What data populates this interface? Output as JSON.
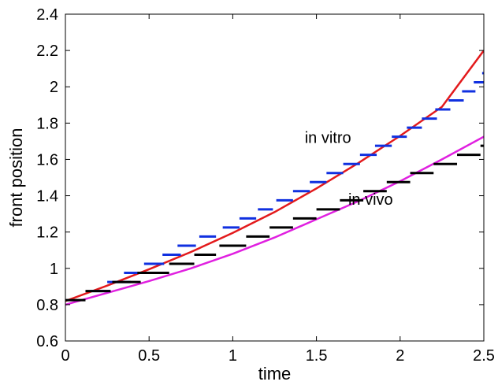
{
  "chart_data": {
    "type": "line",
    "title": "",
    "xlabel": "time",
    "ylabel": "front position",
    "xlim": [
      0,
      2.5
    ],
    "ylim": [
      0.6,
      2.4
    ],
    "xticks": [
      0,
      0.5,
      1,
      1.5,
      2,
      2.5
    ],
    "xtick_labels": [
      "0",
      "0.5",
      "1",
      "1.5",
      "2",
      "2.5"
    ],
    "yticks": [
      0.6,
      0.8,
      1,
      1.2,
      1.4,
      1.6,
      1.8,
      2,
      2.2,
      2.4
    ],
    "ytick_labels": [
      "0.6",
      "0.8",
      "1",
      "1.2",
      "1.4",
      "1.6",
      "1.8",
      "2",
      "2.2",
      "2.4"
    ],
    "grid": false,
    "annotations": [
      {
        "text": "in vitro",
        "x": 1.43,
        "y": 1.69
      },
      {
        "text": "in vivo",
        "x": 1.69,
        "y": 1.35
      }
    ],
    "series": [
      {
        "style": "line",
        "color": "#e31a1c",
        "x": [
          0,
          0.25,
          0.5,
          0.75,
          1.0,
          1.25,
          1.5,
          1.75,
          2.0,
          2.25,
          2.5
        ],
        "y": [
          0.82,
          0.905,
          0.995,
          1.09,
          1.195,
          1.31,
          1.44,
          1.58,
          1.73,
          1.89,
          2.2
        ]
      },
      {
        "style": "line",
        "color": "#e020e0",
        "x": [
          0,
          0.25,
          0.5,
          0.75,
          1.0,
          1.25,
          1.5,
          1.75,
          2.0,
          2.25,
          2.5
        ],
        "y": [
          0.8,
          0.865,
          0.93,
          1.0,
          1.08,
          1.17,
          1.27,
          1.37,
          1.48,
          1.6,
          1.725
        ]
      },
      {
        "style": "steps",
        "color": "#1030e0",
        "segments": [
          [
            0.15,
            0.27,
            0.875
          ],
          [
            0.25,
            0.39,
            0.925
          ],
          [
            0.35,
            0.47,
            0.975
          ],
          [
            0.47,
            0.59,
            1.025
          ],
          [
            0.58,
            0.69,
            1.075
          ],
          [
            0.67,
            0.78,
            1.125
          ],
          [
            0.8,
            0.9,
            1.175
          ],
          [
            0.94,
            1.04,
            1.225
          ],
          [
            1.04,
            1.14,
            1.275
          ],
          [
            1.15,
            1.24,
            1.325
          ],
          [
            1.26,
            1.36,
            1.375
          ],
          [
            1.36,
            1.46,
            1.425
          ],
          [
            1.46,
            1.56,
            1.475
          ],
          [
            1.56,
            1.66,
            1.525
          ],
          [
            1.66,
            1.76,
            1.575
          ],
          [
            1.76,
            1.86,
            1.625
          ],
          [
            1.85,
            1.95,
            1.675
          ],
          [
            1.95,
            2.04,
            1.725
          ],
          [
            2.04,
            2.13,
            1.775
          ],
          [
            2.13,
            2.22,
            1.825
          ],
          [
            2.21,
            2.3,
            1.875
          ],
          [
            2.29,
            2.38,
            1.925
          ],
          [
            2.37,
            2.45,
            1.975
          ],
          [
            2.44,
            2.52,
            2.025
          ],
          [
            2.49,
            2.56,
            2.075
          ],
          [
            2.53,
            2.59,
            2.125
          ],
          [
            2.57,
            2.62,
            2.175
          ]
        ]
      },
      {
        "style": "steps",
        "color": "#000000",
        "segments": [
          [
            0.0,
            0.12,
            0.825
          ],
          [
            0.12,
            0.27,
            0.875
          ],
          [
            0.28,
            0.45,
            0.925
          ],
          [
            0.43,
            0.62,
            0.975
          ],
          [
            0.62,
            0.77,
            1.025
          ],
          [
            0.77,
            0.9,
            1.075
          ],
          [
            0.92,
            1.08,
            1.125
          ],
          [
            1.08,
            1.22,
            1.175
          ],
          [
            1.22,
            1.36,
            1.225
          ],
          [
            1.36,
            1.5,
            1.275
          ],
          [
            1.5,
            1.64,
            1.325
          ],
          [
            1.64,
            1.78,
            1.375
          ],
          [
            1.78,
            1.92,
            1.425
          ],
          [
            1.92,
            2.06,
            1.475
          ],
          [
            2.06,
            2.2,
            1.525
          ],
          [
            2.2,
            2.34,
            1.575
          ],
          [
            2.34,
            2.48,
            1.625
          ],
          [
            2.48,
            2.62,
            1.675
          ]
        ]
      }
    ]
  }
}
